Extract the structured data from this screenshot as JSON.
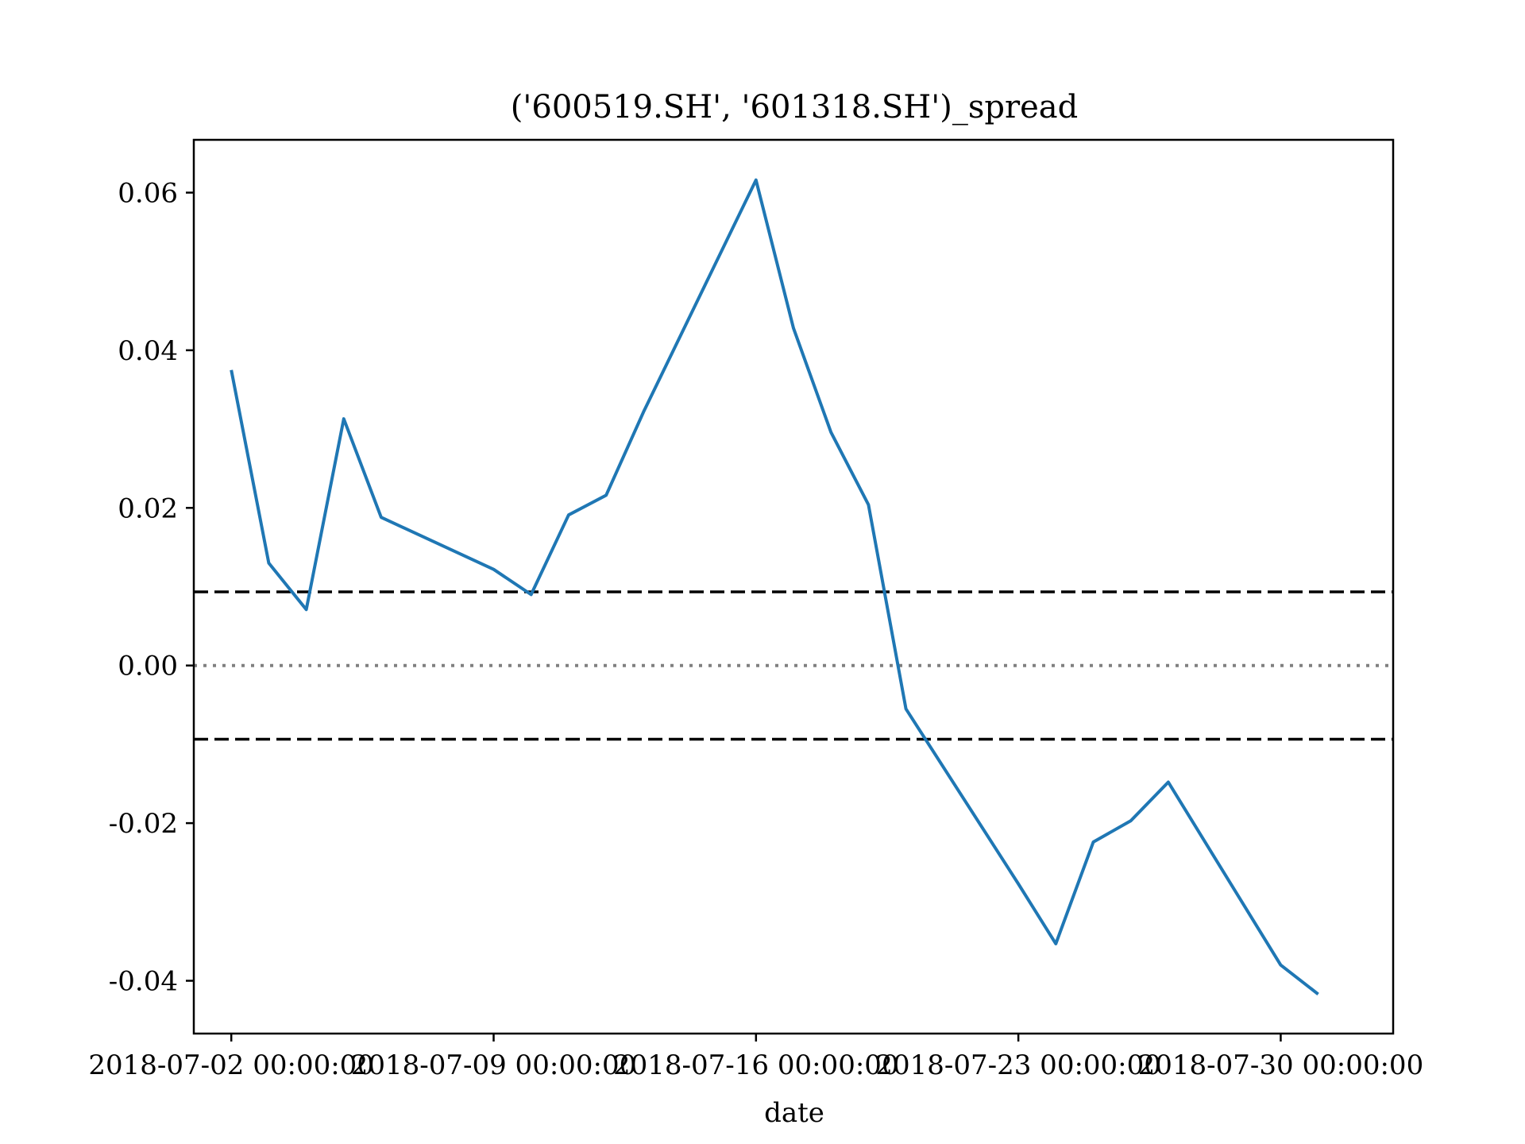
{
  "chart_data": {
    "type": "line",
    "title": "('600519.SH', '601318.SH')_spread",
    "xlabel": "date",
    "ylabel": "",
    "ylim": [
      -0.0467,
      0.0667
    ],
    "xlim": [
      "2018-07-01",
      "2018-08-02"
    ],
    "grid": false,
    "legend": "none",
    "x": [
      "2018-07-02",
      "2018-07-03",
      "2018-07-04",
      "2018-07-05",
      "2018-07-06",
      "2018-07-09",
      "2018-07-10",
      "2018-07-11",
      "2018-07-12",
      "2018-07-13",
      "2018-07-16",
      "2018-07-17",
      "2018-07-18",
      "2018-07-19",
      "2018-07-20",
      "2018-07-23",
      "2018-07-24",
      "2018-07-25",
      "2018-07-26",
      "2018-07-27",
      "2018-07-30",
      "2018-07-31"
    ],
    "series": [
      {
        "name": "",
        "color": "#1f77b4",
        "values": [
          0.0375,
          0.013,
          0.0071,
          0.0313,
          0.0188,
          0.0122,
          0.009,
          0.0191,
          0.0216,
          0.0322,
          0.0616,
          0.0428,
          0.0296,
          0.0204,
          -0.0055,
          -0.0277,
          -0.0353,
          -0.0224,
          -0.0197,
          -0.0148,
          -0.038,
          -0.0417
        ]
      }
    ],
    "hlines": [
      {
        "y": 0.00935,
        "style": "dashed",
        "color": "#000000"
      },
      {
        "y": 0.0,
        "style": "dotted",
        "color": "#808080"
      },
      {
        "y": -0.00935,
        "style": "dashed",
        "color": "#000000"
      }
    ],
    "xticks": [
      {
        "date": "2018-07-02",
        "label": "2018-07-02 00:00:00"
      },
      {
        "date": "2018-07-09",
        "label": "2018-07-09 00:00:00"
      },
      {
        "date": "2018-07-16",
        "label": "2018-07-16 00:00:00"
      },
      {
        "date": "2018-07-23",
        "label": "2018-07-23 00:00:00"
      },
      {
        "date": "2018-07-30",
        "label": "2018-07-30 00:00:00"
      }
    ],
    "yticks": [
      {
        "value": 0.06,
        "label": "0.06"
      },
      {
        "value": 0.04,
        "label": "0.04"
      },
      {
        "value": 0.02,
        "label": "0.02"
      },
      {
        "value": 0.0,
        "label": "0.00"
      },
      {
        "value": -0.02,
        "label": "-0.02"
      },
      {
        "value": -0.04,
        "label": "-0.04"
      }
    ]
  }
}
